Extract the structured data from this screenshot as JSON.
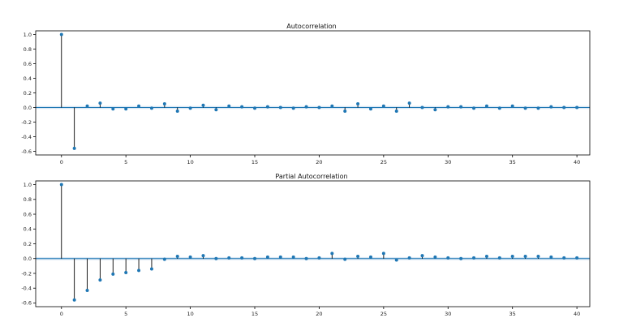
{
  "style": {
    "accent": "#1f77b4",
    "band_color": "#a6c8e4",
    "stem_color": "#000000"
  },
  "chart_data": [
    {
      "type": "stem",
      "title": "Autocorrelation",
      "xlim": [
        -2,
        41
      ],
      "ylim": [
        -0.65,
        1.05
      ],
      "xticks": [
        0,
        5,
        10,
        15,
        20,
        25,
        30,
        35,
        40
      ],
      "yticks": [
        1.0,
        0.8,
        0.6,
        0.4,
        0.2,
        0.0,
        -0.2,
        -0.4,
        -0.6
      ],
      "ytick_labels": [
        "1.0",
        "0.8",
        "0.6",
        "0.4",
        "0.2",
        "0.0",
        "-0.2",
        "-0.4",
        "-0.6"
      ],
      "confidence_band": 0.02,
      "x": [
        0,
        1,
        2,
        3,
        4,
        5,
        6,
        7,
        8,
        9,
        10,
        11,
        12,
        13,
        14,
        15,
        16,
        17,
        18,
        19,
        20,
        21,
        22,
        23,
        24,
        25,
        26,
        27,
        28,
        29,
        30,
        31,
        32,
        33,
        34,
        35,
        36,
        37,
        38,
        39,
        40
      ],
      "values": [
        1.0,
        -0.56,
        0.02,
        0.06,
        -0.02,
        -0.02,
        0.02,
        -0.01,
        0.05,
        -0.05,
        -0.01,
        0.03,
        -0.03,
        0.02,
        0.01,
        -0.01,
        0.01,
        0.0,
        -0.01,
        0.01,
        0.0,
        0.02,
        -0.05,
        0.05,
        -0.02,
        0.02,
        -0.05,
        0.06,
        0.0,
        -0.03,
        0.01,
        0.01,
        -0.01,
        0.02,
        -0.01,
        0.02,
        -0.01,
        -0.01,
        0.01,
        0.0,
        0.0
      ]
    },
    {
      "type": "stem",
      "title": "Partial Autocorrelation",
      "xlim": [
        -2,
        41
      ],
      "ylim": [
        -0.65,
        1.05
      ],
      "xticks": [
        0,
        5,
        10,
        15,
        20,
        25,
        30,
        35,
        40
      ],
      "yticks": [
        1.0,
        0.8,
        0.6,
        0.4,
        0.2,
        0.0,
        -0.2,
        -0.4,
        -0.6
      ],
      "ytick_labels": [
        "1.0",
        "0.8",
        "0.6",
        "0.4",
        "0.2",
        "0.0",
        "-0.2",
        "-0.4",
        "-0.6"
      ],
      "confidence_band": 0.02,
      "x": [
        0,
        1,
        2,
        3,
        4,
        5,
        6,
        7,
        8,
        9,
        10,
        11,
        12,
        13,
        14,
        15,
        16,
        17,
        18,
        19,
        20,
        21,
        22,
        23,
        24,
        25,
        26,
        27,
        28,
        29,
        30,
        31,
        32,
        33,
        34,
        35,
        36,
        37,
        38,
        39,
        40
      ],
      "values": [
        1.0,
        -0.56,
        -0.43,
        -0.29,
        -0.21,
        -0.19,
        -0.16,
        -0.14,
        -0.01,
        0.03,
        0.02,
        0.04,
        0.0,
        0.01,
        0.01,
        0.0,
        0.02,
        0.02,
        0.02,
        0.0,
        0.01,
        0.07,
        -0.01,
        0.03,
        0.02,
        0.07,
        -0.02,
        0.01,
        0.04,
        0.02,
        0.01,
        0.0,
        0.01,
        0.03,
        0.01,
        0.03,
        0.03,
        0.03,
        0.02,
        0.01,
        0.01
      ]
    }
  ]
}
